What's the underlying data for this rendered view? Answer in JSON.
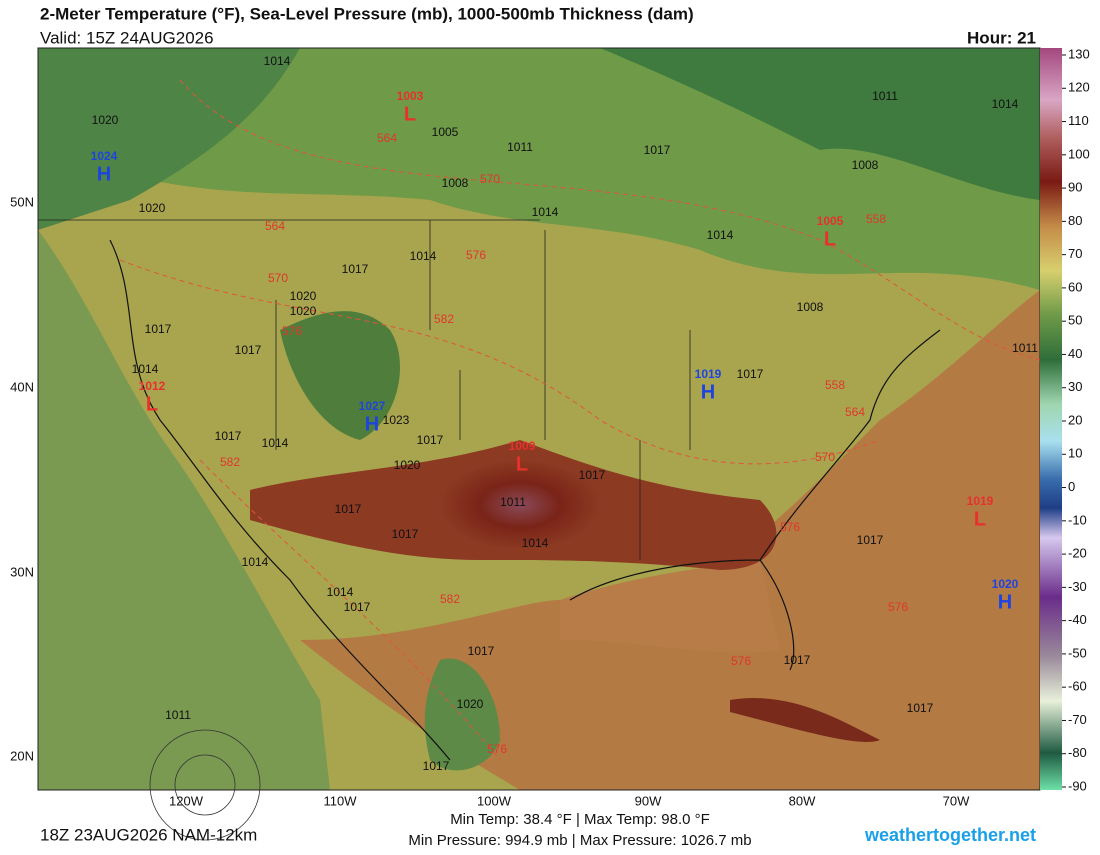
{
  "header": {
    "title": "2-Meter Temperature (°F), Sea-Level Pressure (mb), 1000-500mb Thickness (dam)",
    "valid": "Valid: 15Z 24AUG2026",
    "hour": "Hour: 21"
  },
  "lat_labels": [
    "50N",
    "40N",
    "30N",
    "20N"
  ],
  "lon_labels": [
    "120W",
    "110W",
    "100W",
    "90W",
    "80W",
    "70W"
  ],
  "centers": [
    {
      "type": "L",
      "value": 1003
    },
    {
      "type": "H",
      "value": 1024
    },
    {
      "type": "L",
      "value": 1005
    },
    {
      "type": "L",
      "value": 1012
    },
    {
      "type": "H",
      "value": 1019
    },
    {
      "type": "H",
      "value": 1027
    },
    {
      "type": "L",
      "value": 1009
    },
    {
      "type": "L",
      "value": 1019
    },
    {
      "type": "H",
      "value": 1020
    }
  ],
  "isobars": [
    1014,
    1020,
    1005,
    1011,
    1008,
    1020,
    1014,
    1017,
    1008,
    1011,
    1014,
    1014,
    1017,
    1014,
    1020,
    1020,
    1017,
    1017,
    1014,
    1008,
    1011,
    1017,
    1023,
    1017,
    1017,
    1014,
    1020,
    1011,
    1017,
    1017,
    1017,
    1014,
    1017,
    1014,
    1014,
    1017,
    1017,
    1020,
    1017,
    1017,
    1011,
    1017
  ],
  "thickness": [
    564,
    570,
    564,
    576,
    570,
    576,
    582,
    558,
    558,
    564,
    570,
    582,
    576,
    582,
    576,
    576,
    576
  ],
  "colorbar": {
    "ticks": [
      130,
      120,
      110,
      100,
      90,
      80,
      70,
      60,
      50,
      40,
      30,
      20,
      10,
      0,
      -10,
      -20,
      -30,
      -40,
      -50,
      -60,
      -70,
      -80,
      -90
    ]
  },
  "footer": {
    "model": "18Z 23AUG2026 NAM-12km",
    "temps": "Min Temp:  38.4 °F | Max Temp:  98.0 °F",
    "pressures": "Min Pressure: 994.9 mb | Max Pressure: 1026.7 mb",
    "site": "weathertogether.net"
  }
}
